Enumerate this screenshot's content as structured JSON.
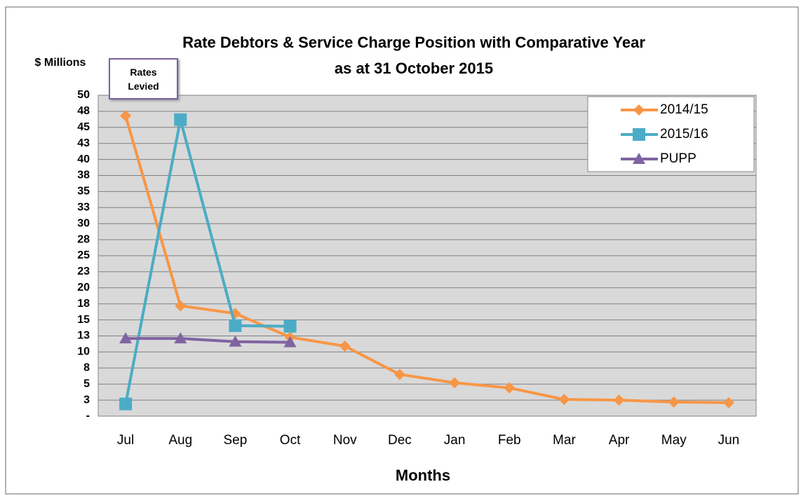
{
  "chart_data": {
    "type": "line",
    "title": "Rate Debtors & Service Charge Position with Comparative Year",
    "subtitle": "as at 31 October 2015",
    "y_label": "$ Millions",
    "x_label": "Months",
    "annotation": "Rates Levied",
    "categories": [
      "Jul",
      "Aug",
      "Sep",
      "Oct",
      "Nov",
      "Dec",
      "Jan",
      "Feb",
      "Mar",
      "Apr",
      "May",
      "Jun"
    ],
    "series": [
      {
        "name": "2014/15",
        "color": "#f79646",
        "marker": "diamond",
        "values": [
          46.8,
          17.2,
          16.0,
          12.3,
          10.9,
          6.5,
          5.2,
          4.4,
          2.6,
          2.5,
          2.2,
          2.1
        ]
      },
      {
        "name": "2015/16",
        "color": "#4bacc6",
        "marker": "square",
        "values": [
          1.9,
          46.2,
          14.1,
          14.0,
          null,
          null,
          null,
          null,
          null,
          null,
          null,
          null
        ]
      },
      {
        "name": "PUPP",
        "color": "#8064a2",
        "marker": "triangle",
        "values": [
          12.1,
          12.1,
          11.6,
          11.5,
          null,
          null,
          null,
          null,
          null,
          null,
          null,
          null
        ]
      }
    ],
    "ylim": [
      0,
      50
    ],
    "yticks": [
      {
        "value": 0,
        "label": "-"
      },
      {
        "value": 2.5,
        "label": "3"
      },
      5,
      {
        "value": 7.5,
        "label": "8"
      },
      10,
      {
        "value": 12.5,
        "label": "13"
      },
      15,
      {
        "value": 17.5,
        "label": "18"
      },
      20,
      {
        "value": 22.5,
        "label": "23"
      },
      25,
      {
        "value": 27.5,
        "label": "28"
      },
      30,
      {
        "value": 32.5,
        "label": "33"
      },
      35,
      {
        "value": 37.5,
        "label": "38"
      },
      40,
      {
        "value": 42.5,
        "label": "43"
      },
      45,
      {
        "value": 47.5,
        "label": "48"
      },
      50
    ],
    "grid": true,
    "legend": "top-right"
  }
}
